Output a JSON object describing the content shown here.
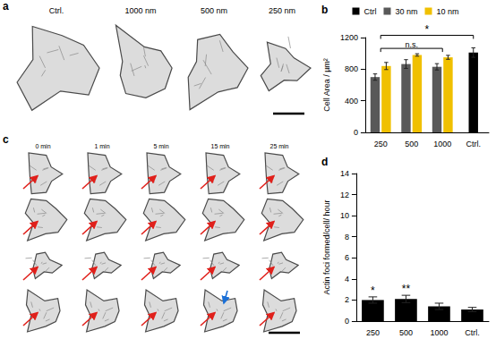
{
  "figure": {
    "a": {
      "letter": "a",
      "labels": [
        "Ctrl.",
        "1000 nm",
        "500 nm",
        "250 nm"
      ]
    },
    "c": {
      "letter": "c",
      "times": [
        "0 min",
        "1 min",
        "5 min",
        "15 min",
        "25 min"
      ]
    }
  },
  "chart_data": [
    {
      "type": "bar",
      "title": "b",
      "categories": [
        "250",
        "500",
        "1000",
        "Ctrl."
      ],
      "ylabel": "Cell Area / µm²",
      "ylim": [
        0,
        1200
      ],
      "yticks": [
        0,
        400,
        800,
        1200
      ],
      "legend": "top",
      "series": [
        {
          "name": "Ctrl",
          "color": "#000000",
          "values": [
            null,
            null,
            null,
            1010
          ],
          "errors": [
            null,
            null,
            null,
            60
          ]
        },
        {
          "name": "30 nm",
          "color": "#595959",
          "values": [
            700,
            865,
            830,
            null
          ],
          "errors": [
            40,
            55,
            40,
            null
          ]
        },
        {
          "name": "10 nm",
          "color": "#f0c000",
          "values": [
            840,
            980,
            950,
            null
          ],
          "errors": [
            45,
            15,
            25,
            null
          ]
        }
      ],
      "annotations": [
        {
          "text": "n.s.",
          "from": "250",
          "to": "1000"
        },
        {
          "text": "*",
          "from": "250",
          "to": "Ctrl."
        }
      ]
    },
    {
      "type": "bar",
      "title": "d",
      "categories": [
        "250",
        "500",
        "1000",
        "Ctrl."
      ],
      "ylabel": "Actin foci formed/cell/ hour",
      "color": "#000000",
      "values": [
        2.0,
        2.1,
        1.4,
        1.1
      ],
      "errors": [
        0.3,
        0.35,
        0.3,
        0.2
      ],
      "ylim": [
        0,
        14
      ],
      "yticks": [
        0,
        2,
        4,
        6,
        8,
        10,
        12,
        14
      ],
      "annotations": [
        {
          "text": "*",
          "category": "250"
        },
        {
          "text": "**",
          "category": "500"
        }
      ]
    }
  ]
}
